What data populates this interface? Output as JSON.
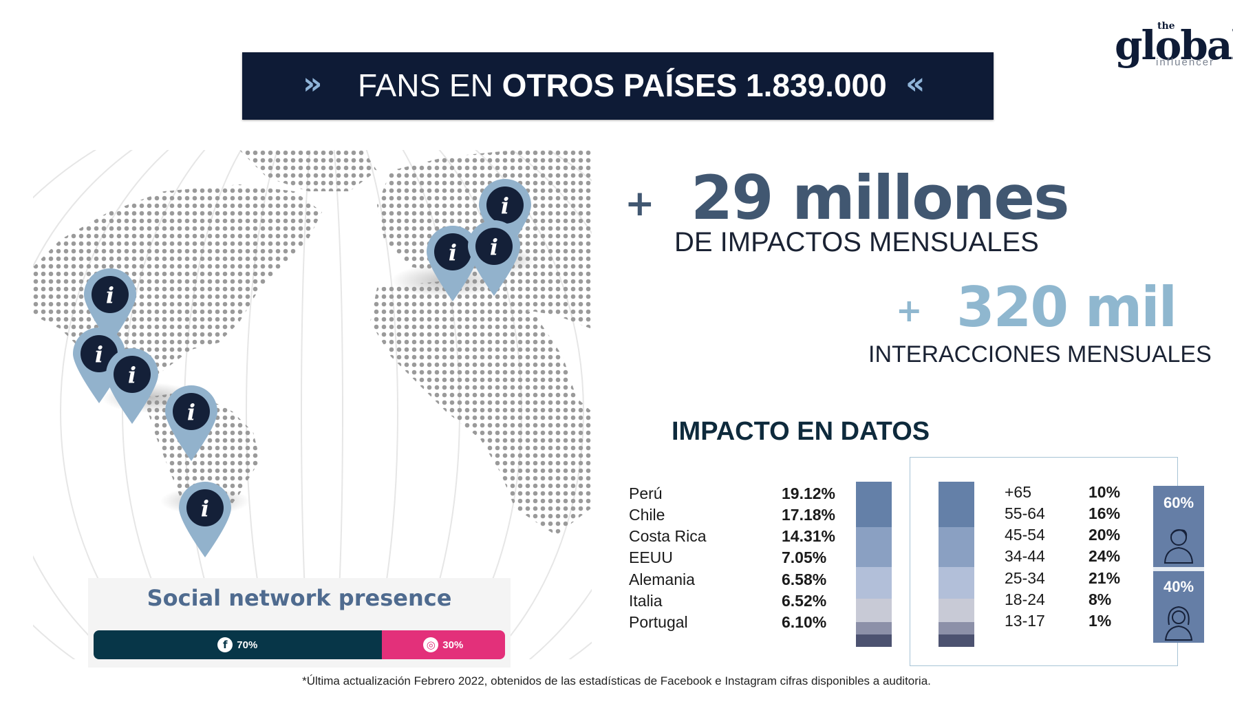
{
  "logo": {
    "the": "the",
    "brand": "global.",
    "sub": "influencer"
  },
  "banner": {
    "prefix": "FANS EN",
    "bold": "OTROS PAÍSES 1.839.000",
    "left_arrows": "»",
    "right_arrows": "«"
  },
  "stats": {
    "plus": "+",
    "impacts_value": "29 millones",
    "impacts_label": "DE IMPACTOS MENSUALES",
    "interactions_value": "320 mil",
    "interactions_label": "INTERACCIONES MENSUALES"
  },
  "social": {
    "title": "Social network presence",
    "facebook": {
      "icon": "facebook-icon",
      "label": "70%",
      "share": 70
    },
    "instagram": {
      "icon": "instagram-icon",
      "label": "30%",
      "share": 30
    }
  },
  "impact_title": "IMPACTO EN DATOS",
  "countries": [
    {
      "name": "Perú",
      "value": "19.12%"
    },
    {
      "name": "Chile",
      "value": "17.18%"
    },
    {
      "name": "Costa Rica",
      "value": "14.31%"
    },
    {
      "name": "EEUU",
      "value": "7.05%"
    },
    {
      "name": "Alemania",
      "value": "6.58%"
    },
    {
      "name": "Italia",
      "value": "6.52%"
    },
    {
      "name": "Portugal",
      "value": "6.10%"
    }
  ],
  "ages": [
    {
      "range": "+65",
      "value": "10%"
    },
    {
      "range": "55-64",
      "value": "16%"
    },
    {
      "range": "45-54",
      "value": "20%"
    },
    {
      "range": "34-44",
      "value": "24%"
    },
    {
      "range": "25-34",
      "value": "21%"
    },
    {
      "range": "18-24",
      "value": "8%"
    },
    {
      "range": "13-17",
      "value": "1%"
    }
  ],
  "gender": {
    "male": "60%",
    "female": "40%"
  },
  "colors": {
    "navy": "#0e1b36",
    "slate": "#415771",
    "light_blue": "#8fb7cf",
    "facebook": "#073648",
    "instagram": "#e3307a",
    "gender_bg": "#657ea6"
  },
  "footnote": "*Última actualización Febrero  2022, obtenidos de las estadísticas de Facebook e Instagram  cifras disponibles a auditoria."
}
